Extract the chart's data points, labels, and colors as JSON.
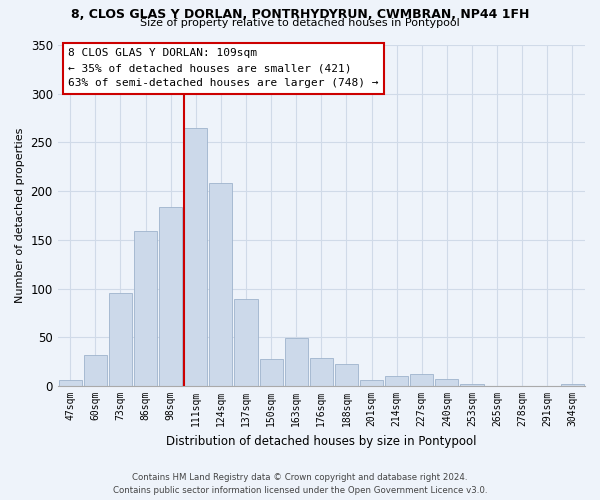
{
  "title": "8, CLOS GLAS Y DORLAN, PONTRHYDYRUN, CWMBRAN, NP44 1FH",
  "subtitle": "Size of property relative to detached houses in Pontypool",
  "xlabel": "Distribution of detached houses by size in Pontypool",
  "ylabel": "Number of detached properties",
  "categories": [
    "47sqm",
    "60sqm",
    "73sqm",
    "86sqm",
    "98sqm",
    "111sqm",
    "124sqm",
    "137sqm",
    "150sqm",
    "163sqm",
    "176sqm",
    "188sqm",
    "201sqm",
    "214sqm",
    "227sqm",
    "240sqm",
    "253sqm",
    "265sqm",
    "278sqm",
    "291sqm",
    "304sqm"
  ],
  "values": [
    6,
    32,
    95,
    159,
    184,
    265,
    208,
    89,
    28,
    49,
    29,
    23,
    6,
    10,
    12,
    7,
    2,
    0,
    0,
    0,
    2
  ],
  "bar_color": "#ccd9ea",
  "bar_edge_color": "#9fb3cc",
  "vline_color": "#cc0000",
  "vline_idx": 5,
  "ylim": [
    0,
    350
  ],
  "yticks": [
    0,
    50,
    100,
    150,
    200,
    250,
    300,
    350
  ],
  "annotation_title": "8 CLOS GLAS Y DORLAN: 109sqm",
  "annotation_line1": "← 35% of detached houses are smaller (421)",
  "annotation_line2": "63% of semi-detached houses are larger (748) →",
  "footer1": "Contains HM Land Registry data © Crown copyright and database right 2024.",
  "footer2": "Contains public sector information licensed under the Open Government Licence v3.0.",
  "bg_color": "#eef3fa",
  "grid_color": "#d0dae8"
}
